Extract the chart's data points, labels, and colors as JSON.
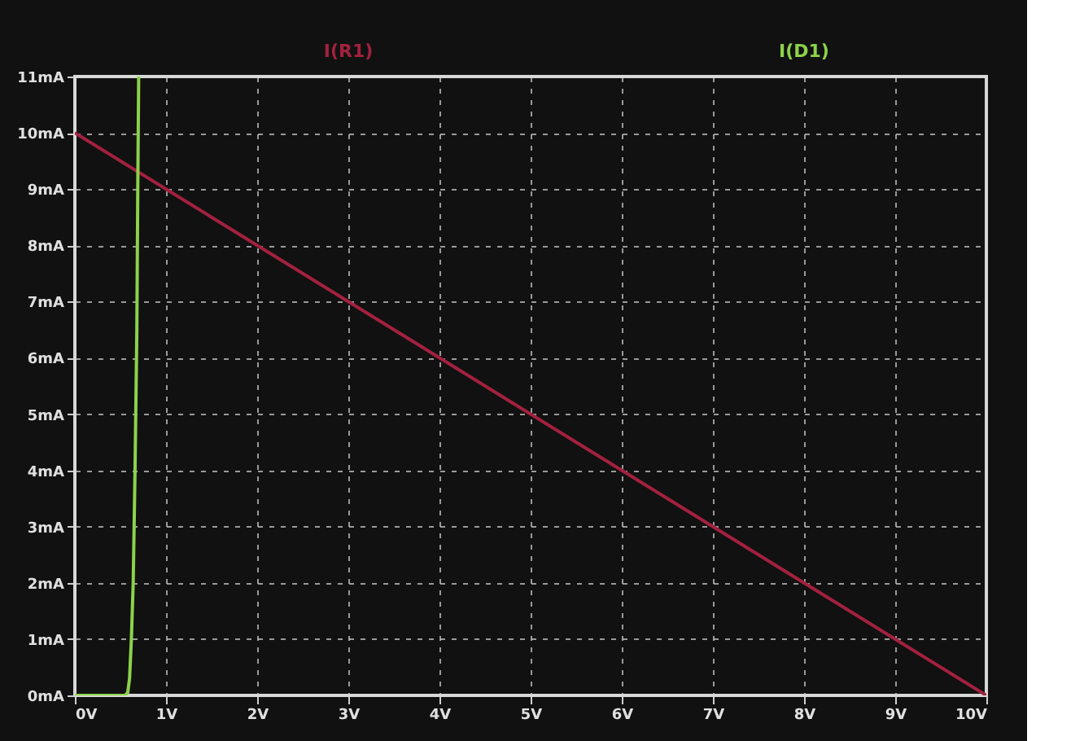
{
  "chart_data": {
    "type": "line",
    "series": [
      {
        "name": "I(R1)",
        "color": "#a3213e",
        "x": [
          0,
          10
        ],
        "values": [
          10,
          0
        ]
      },
      {
        "name": "I(D1)",
        "color": "#8cd24a",
        "x": [
          0,
          0.55,
          0.58,
          0.6,
          0.62,
          0.64,
          0.66,
          0.68,
          0.69,
          0.7
        ],
        "values": [
          0,
          0,
          0.05,
          0.3,
          1,
          2,
          4,
          6.5,
          9,
          11
        ]
      }
    ],
    "xlim": [
      0,
      10
    ],
    "ylim": [
      0,
      11
    ],
    "xticks": [
      {
        "value": 0,
        "label": "0V"
      },
      {
        "value": 1,
        "label": "1V"
      },
      {
        "value": 2,
        "label": "2V"
      },
      {
        "value": 3,
        "label": "3V"
      },
      {
        "value": 4,
        "label": "4V"
      },
      {
        "value": 5,
        "label": "5V"
      },
      {
        "value": 6,
        "label": "6V"
      },
      {
        "value": 7,
        "label": "7V"
      },
      {
        "value": 8,
        "label": "8V"
      },
      {
        "value": 9,
        "label": "9V"
      },
      {
        "value": 10,
        "label": "10V"
      }
    ],
    "yticks": [
      {
        "value": 0,
        "label": "0mA"
      },
      {
        "value": 1,
        "label": "1mA"
      },
      {
        "value": 2,
        "label": "2mA"
      },
      {
        "value": 3,
        "label": "3mA"
      },
      {
        "value": 4,
        "label": "4mA"
      },
      {
        "value": 5,
        "label": "5mA"
      },
      {
        "value": 6,
        "label": "6mA"
      },
      {
        "value": 7,
        "label": "7mA"
      },
      {
        "value": 8,
        "label": "8mA"
      },
      {
        "value": 9,
        "label": "9mA"
      },
      {
        "value": 10,
        "label": "10mA"
      },
      {
        "value": 11,
        "label": "11mA"
      }
    ],
    "grid": true,
    "legend": "top",
    "marker": "none",
    "line_style": "solid"
  }
}
